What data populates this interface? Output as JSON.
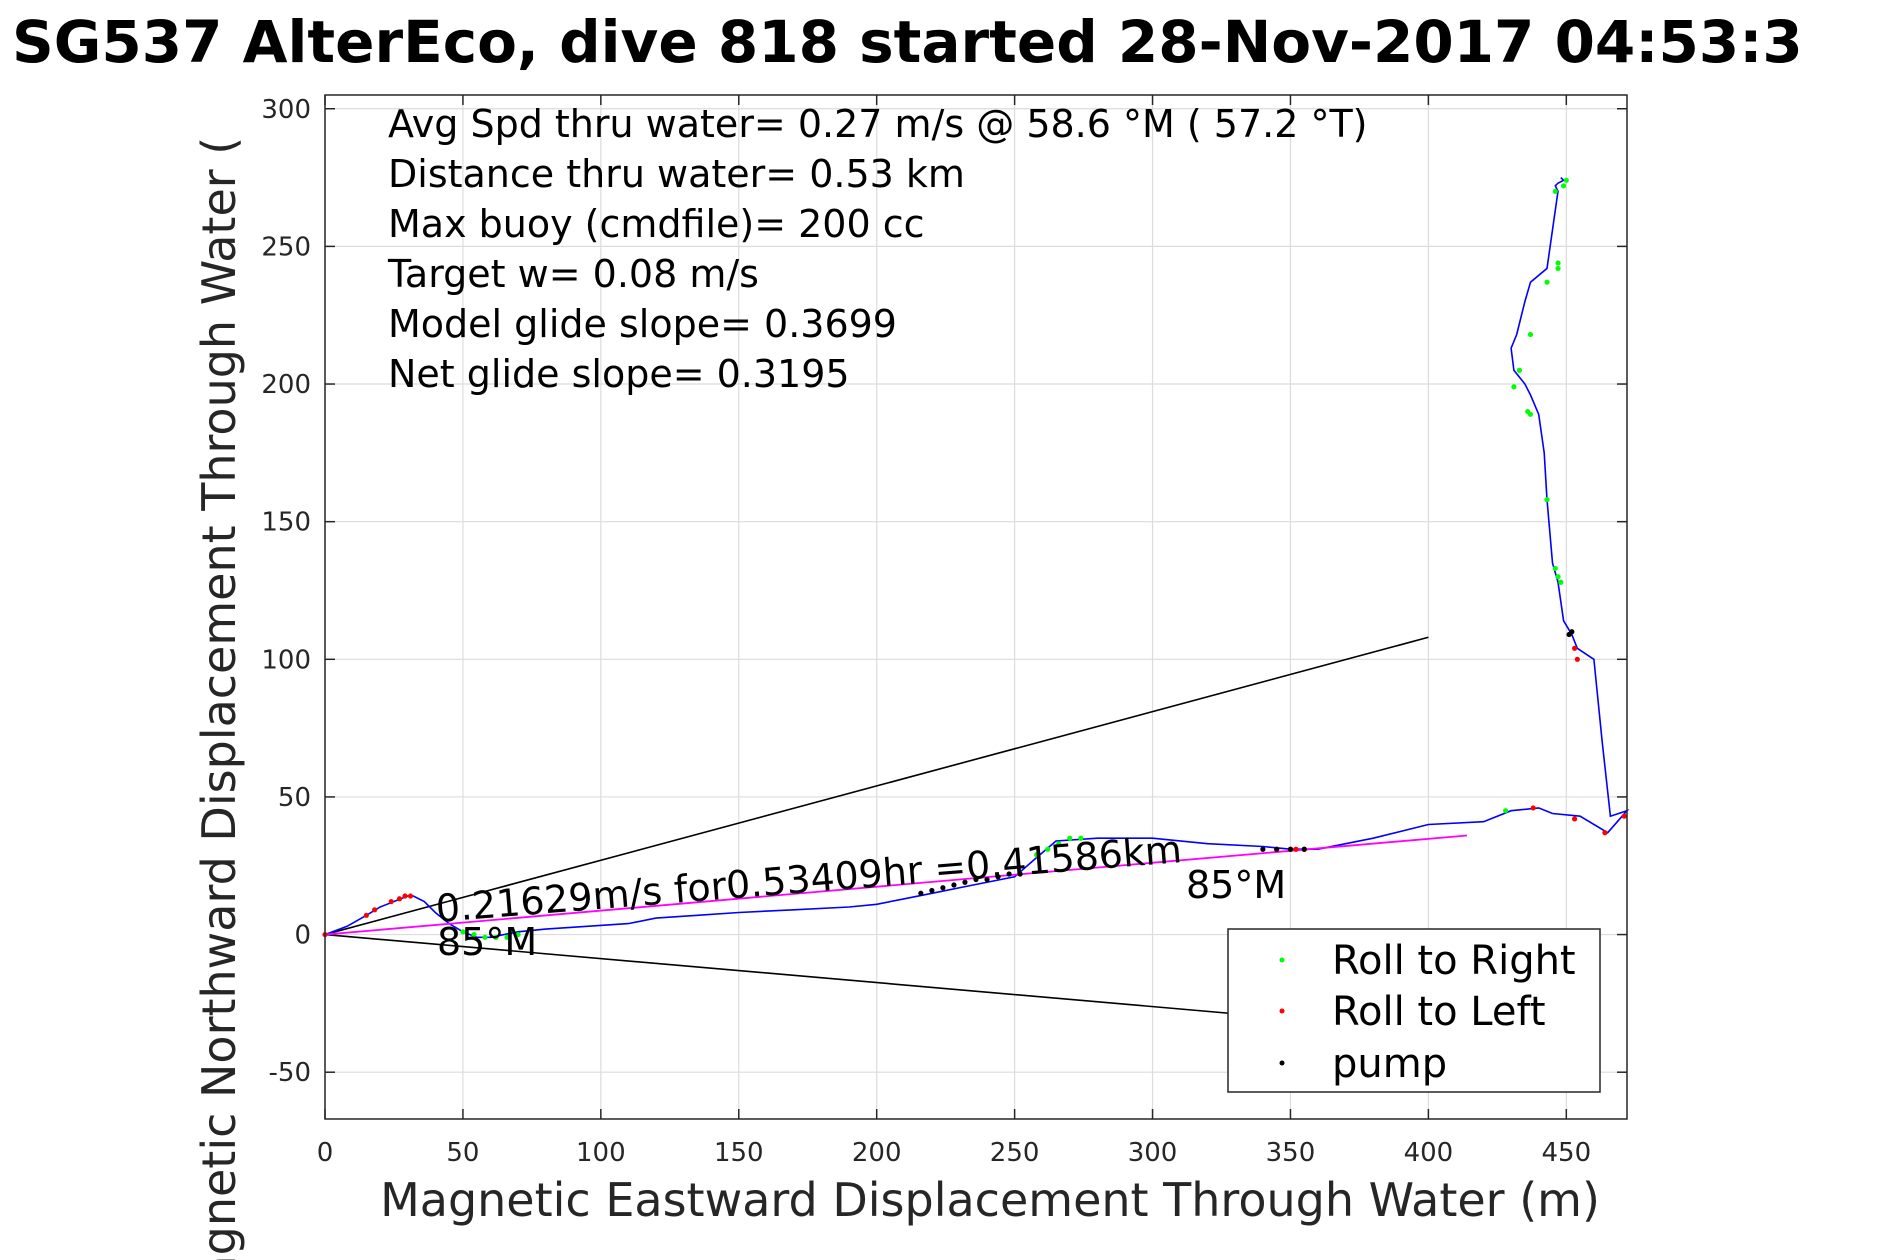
{
  "chart_data": {
    "type": "line",
    "title": "SG537 AlterEco, dive 818 started 28-Nov-2017 04:53:3",
    "xlabel": "Magnetic Eastward Displacement Through Water (m)",
    "ylabel": "Magnetic Northward Displacement Through Water (",
    "xlim": [
      0,
      472
    ],
    "ylim": [
      -67,
      305
    ],
    "xticks": [
      "0",
      "50",
      "100",
      "150",
      "200",
      "250",
      "300",
      "350",
      "400",
      "450"
    ],
    "yticks": [
      "300",
      "250",
      "200",
      "150",
      "100",
      "50",
      "0",
      "-50"
    ],
    "grid": true,
    "legend_position": "bottom-right",
    "colors": {
      "track": "#0000ff",
      "roll_right": "#00ff00",
      "roll_left": "#ff0000",
      "pump": "#000000",
      "current": "#ff00ff",
      "reference": "#000000"
    },
    "annotations": [
      "Avg Spd thru water=  0.27 m/s @  58.6 °M ( 57.2 °T)",
      "Distance thru water=  0.53 km",
      "Max buoy (cmdfile)= 200 cc",
      "Target w= 0.08 m/s",
      "Model glide slope= 0.3699",
      "Net glide slope= 0.3195"
    ],
    "current_label": "0.21629m/s for0.53409hr =0.41586km",
    "heading_label_1": "85°M",
    "heading_label_2": "85°M",
    "legend": [
      {
        "name": "Roll to Right"
      },
      {
        "name": "Roll to Left"
      },
      {
        "name": "pump"
      }
    ],
    "track": {
      "x": [
        0,
        8,
        15,
        20,
        25,
        30,
        32,
        36,
        40,
        45,
        50,
        55,
        60,
        70,
        80,
        95,
        110,
        120,
        135,
        150,
        170,
        190,
        200,
        210,
        220,
        235,
        250,
        258,
        265,
        280,
        300,
        320,
        340,
        350,
        360,
        380,
        400,
        420,
        430,
        440,
        445,
        455,
        465,
        472,
        466,
        463,
        460,
        454,
        452,
        449,
        447,
        445,
        443,
        442,
        440,
        437,
        435,
        431,
        430,
        432,
        435,
        437,
        443,
        447,
        446,
        447,
        449,
        448
      ],
      "y": [
        0,
        3,
        7,
        10,
        12,
        14,
        14,
        12,
        8,
        4,
        1,
        -1,
        -1,
        1,
        2,
        3,
        4,
        6,
        7,
        8,
        9,
        10,
        11,
        13,
        15,
        18,
        21,
        28,
        34,
        35,
        35,
        33,
        32,
        31,
        31,
        35,
        40,
        41,
        45,
        46,
        44,
        43,
        37,
        45,
        43,
        70,
        100,
        104,
        109,
        114,
        128,
        135,
        158,
        175,
        189,
        196,
        200,
        205,
        213,
        218,
        230,
        237,
        242,
        270,
        272,
        273,
        274,
        275
      ]
    },
    "roll_right_points": {
      "x": [
        50,
        54,
        58,
        62,
        66,
        70,
        258,
        262,
        266,
        270,
        274,
        428,
        447,
        447,
        446,
        443,
        437,
        433,
        431,
        436,
        437,
        443,
        446,
        447,
        448,
        449,
        450
      ],
      "y": [
        1,
        0,
        -1,
        -1,
        -1,
        0,
        29,
        31,
        33,
        35,
        35,
        45,
        242,
        244,
        270,
        237,
        218,
        205,
        199,
        190,
        189,
        158,
        133,
        130,
        128,
        272,
        274
      ]
    },
    "roll_left_points": {
      "x": [
        0,
        15,
        18,
        24,
        27,
        29,
        31,
        345,
        350,
        352,
        355,
        438,
        453,
        464,
        471,
        453,
        454
      ],
      "y": [
        0,
        7,
        9,
        12,
        13,
        14,
        14,
        31,
        31,
        31,
        31,
        46,
        42,
        37,
        43,
        104,
        100
      ]
    },
    "pump_points": {
      "x": [
        216,
        220,
        224,
        228,
        232,
        236,
        240,
        244,
        248,
        252,
        340,
        345,
        350,
        355,
        451,
        452
      ],
      "y": [
        15,
        16,
        17,
        18,
        19,
        20,
        20,
        21,
        22,
        22,
        31,
        31,
        31,
        31,
        109,
        110
      ]
    },
    "current_vector": {
      "x": [
        0,
        414
      ],
      "y": [
        0,
        36
      ]
    },
    "reference_lines": [
      {
        "x": [
          0,
          400
        ],
        "y": [
          0,
          108
        ]
      },
      {
        "x": [
          0,
          344
        ],
        "y": [
          0,
          -30
        ]
      }
    ]
  }
}
